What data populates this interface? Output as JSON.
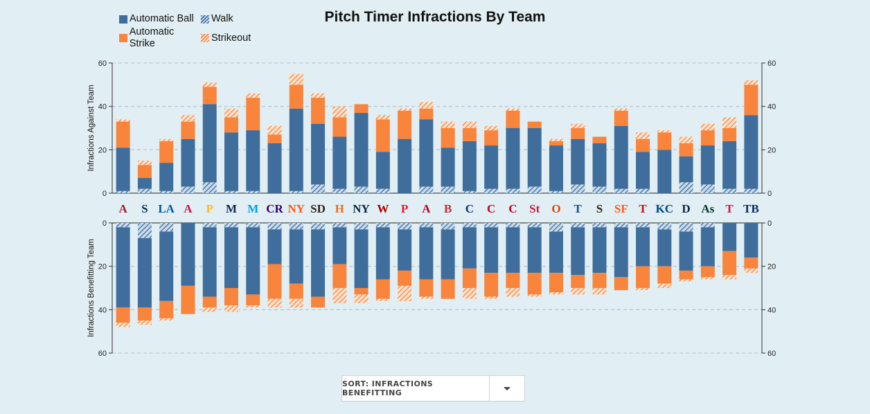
{
  "title": "Pitch Timer Infractions By Team",
  "legend": {
    "automatic_ball": "Automatic Ball",
    "walk": "Walk",
    "automatic_strike": "Automatic Strike",
    "strikeout": "Strikeout"
  },
  "colors": {
    "automatic_ball": "#3f6e9c",
    "automatic_strike": "#f9843c",
    "walk_hatch": "#3f6e9c",
    "strikeout_hatch": "#f9843c",
    "background": "#e1eef3"
  },
  "sort": {
    "label": "SORT: INFRACTIONS BENEFITTING",
    "icon": "chevron-down-icon"
  },
  "chart_data": {
    "type": "bar",
    "stacked": true,
    "mirrored": true,
    "title": "Pitch Timer Infractions By Team",
    "upper_panel": {
      "ylabel": "Infractions Against Team",
      "ylim": [
        0,
        60
      ],
      "ticks": [
        0,
        20,
        40,
        60
      ]
    },
    "lower_panel": {
      "ylabel": "Infractions Benefitting Team",
      "ylim": [
        0,
        60
      ],
      "ticks": [
        0,
        20,
        40,
        60
      ],
      "inverted": true
    },
    "grid": true,
    "legend_position": "top-left",
    "series_order": [
      "Walk",
      "Automatic Ball",
      "Automatic Strike",
      "Strikeout"
    ],
    "teams": [
      {
        "logo": "A",
        "color": "#a71930",
        "against": {
          "walk": 1,
          "ball": 20,
          "strike": 12,
          "so": 1
        },
        "benefit": {
          "walk": 2,
          "ball": 37,
          "strike": 7,
          "so": 2
        }
      },
      {
        "logo": "S",
        "color": "#0c2c56",
        "against": {
          "walk": 2,
          "ball": 5,
          "strike": 6,
          "so": 2
        },
        "benefit": {
          "walk": 7,
          "ball": 32,
          "strike": 6,
          "so": 2
        }
      },
      {
        "logo": "LA",
        "color": "#005a9c",
        "against": {
          "walk": 1,
          "ball": 13,
          "strike": 10,
          "so": 1
        },
        "benefit": {
          "walk": 4,
          "ball": 32,
          "strike": 8,
          "so": 1
        }
      },
      {
        "logo": "A",
        "color": "#ce1141",
        "against": {
          "walk": 3,
          "ball": 22,
          "strike": 8,
          "so": 3
        },
        "benefit": {
          "walk": 0,
          "ball": 29,
          "strike": 13,
          "so": 0
        }
      },
      {
        "logo": "P",
        "color": "#fdb827",
        "against": {
          "walk": 5,
          "ball": 36,
          "strike": 8,
          "so": 2
        },
        "benefit": {
          "walk": 2,
          "ball": 32,
          "strike": 5,
          "so": 2
        }
      },
      {
        "logo": "M",
        "color": "#12284b",
        "against": {
          "walk": 1,
          "ball": 27,
          "strike": 7,
          "so": 4
        },
        "benefit": {
          "walk": 2,
          "ball": 28,
          "strike": 8,
          "so": 3
        }
      },
      {
        "logo": "M",
        "color": "#00a3e0",
        "against": {
          "walk": 1,
          "ball": 28,
          "strike": 15,
          "so": 2
        },
        "benefit": {
          "walk": 2,
          "ball": 31,
          "strike": 5,
          "so": 1
        }
      },
      {
        "logo": "CR",
        "color": "#33006f",
        "against": {
          "walk": 0,
          "ball": 23,
          "strike": 4,
          "so": 4
        },
        "benefit": {
          "walk": 3,
          "ball": 16,
          "strike": 16,
          "so": 4
        }
      },
      {
        "logo": "NY",
        "color": "#ff5910",
        "against": {
          "walk": 1,
          "ball": 38,
          "strike": 11,
          "so": 5
        },
        "benefit": {
          "walk": 3,
          "ball": 25,
          "strike": 7,
          "so": 4
        }
      },
      {
        "logo": "SD",
        "color": "#2f241d",
        "against": {
          "walk": 4,
          "ball": 28,
          "strike": 12,
          "so": 2
        },
        "benefit": {
          "walk": 3,
          "ball": 31,
          "strike": 5,
          "so": 0
        }
      },
      {
        "logo": "H",
        "color": "#eb6e1f",
        "against": {
          "walk": 2,
          "ball": 24,
          "strike": 9,
          "so": 5
        },
        "benefit": {
          "walk": 2,
          "ball": 17,
          "strike": 11,
          "so": 7
        }
      },
      {
        "logo": "NY",
        "color": "#0c2340",
        "against": {
          "walk": 3,
          "ball": 34,
          "strike": 4,
          "so": 0
        },
        "benefit": {
          "walk": 3,
          "ball": 27,
          "strike": 3,
          "so": 4
        }
      },
      {
        "logo": "W",
        "color": "#ab0003",
        "against": {
          "walk": 2,
          "ball": 17,
          "strike": 15,
          "so": 2
        },
        "benefit": {
          "walk": 2,
          "ball": 24,
          "strike": 9,
          "so": 1
        }
      },
      {
        "logo": "P",
        "color": "#e81828",
        "against": {
          "walk": 0,
          "ball": 25,
          "strike": 13,
          "so": 1
        },
        "benefit": {
          "walk": 3,
          "ball": 19,
          "strike": 7,
          "so": 7
        }
      },
      {
        "logo": "A",
        "color": "#ba0021",
        "against": {
          "walk": 3,
          "ball": 31,
          "strike": 5,
          "so": 3
        },
        "benefit": {
          "walk": 2,
          "ball": 24,
          "strike": 8,
          "so": 1
        }
      },
      {
        "logo": "B",
        "color": "#bd3039",
        "against": {
          "walk": 3,
          "ball": 18,
          "strike": 9,
          "so": 3
        },
        "benefit": {
          "walk": 3,
          "ball": 23,
          "strike": 9,
          "so": 0
        }
      },
      {
        "logo": "C",
        "color": "#0e3386",
        "against": {
          "walk": 1,
          "ball": 23,
          "strike": 6,
          "so": 3
        },
        "benefit": {
          "walk": 2,
          "ball": 19,
          "strike": 9,
          "so": 5
        }
      },
      {
        "logo": "C",
        "color": "#c6011f",
        "against": {
          "walk": 2,
          "ball": 20,
          "strike": 7,
          "so": 2
        },
        "benefit": {
          "walk": 2,
          "ball": 21,
          "strike": 11,
          "so": 1
        }
      },
      {
        "logo": "C",
        "color": "#c6011f",
        "against": {
          "walk": 2,
          "ball": 28,
          "strike": 8,
          "so": 1
        },
        "benefit": {
          "walk": 2,
          "ball": 21,
          "strike": 7,
          "so": 4
        }
      },
      {
        "logo": "St",
        "color": "#c41e3a",
        "against": {
          "walk": 3,
          "ball": 27,
          "strike": 3,
          "so": 0
        },
        "benefit": {
          "walk": 2,
          "ball": 21,
          "strike": 10,
          "so": 1
        }
      },
      {
        "logo": "O",
        "color": "#df4601",
        "against": {
          "walk": 1,
          "ball": 21,
          "strike": 2,
          "so": 1
        },
        "benefit": {
          "walk": 4,
          "ball": 19,
          "strike": 9,
          "so": 1
        }
      },
      {
        "logo": "T",
        "color": "#134a8e",
        "against": {
          "walk": 4,
          "ball": 21,
          "strike": 5,
          "so": 2
        },
        "benefit": {
          "walk": 2,
          "ball": 22,
          "strike": 6,
          "so": 3
        }
      },
      {
        "logo": "S",
        "color": "#27251f",
        "against": {
          "walk": 3,
          "ball": 20,
          "strike": 3,
          "so": 0
        },
        "benefit": {
          "walk": 2,
          "ball": 21,
          "strike": 7,
          "so": 3
        }
      },
      {
        "logo": "SF",
        "color": "#fd5a1e",
        "against": {
          "walk": 2,
          "ball": 29,
          "strike": 7,
          "so": 1
        },
        "benefit": {
          "walk": 2,
          "ball": 23,
          "strike": 6,
          "so": 0
        }
      },
      {
        "logo": "T",
        "color": "#c0111f",
        "against": {
          "walk": 2,
          "ball": 17,
          "strike": 6,
          "so": 3
        },
        "benefit": {
          "walk": 2,
          "ball": 18,
          "strike": 10,
          "so": 1
        }
      },
      {
        "logo": "KC",
        "color": "#004687",
        "against": {
          "walk": 0,
          "ball": 20,
          "strike": 8,
          "so": 1
        },
        "benefit": {
          "walk": 3,
          "ball": 17,
          "strike": 8,
          "so": 2
        }
      },
      {
        "logo": "D",
        "color": "#0c2340",
        "against": {
          "walk": 5,
          "ball": 12,
          "strike": 6,
          "so": 3
        },
        "benefit": {
          "walk": 4,
          "ball": 18,
          "strike": 4,
          "so": 1
        }
      },
      {
        "logo": "As",
        "color": "#003831",
        "against": {
          "walk": 4,
          "ball": 18,
          "strike": 7,
          "so": 3
        },
        "benefit": {
          "walk": 2,
          "ball": 18,
          "strike": 5,
          "so": 1
        }
      },
      {
        "logo": "T",
        "color": "#d31145",
        "against": {
          "walk": 2,
          "ball": 22,
          "strike": 6,
          "so": 5
        },
        "benefit": {
          "walk": 0,
          "ball": 13,
          "strike": 11,
          "so": 2
        }
      },
      {
        "logo": "TB",
        "color": "#092c5c",
        "against": {
          "walk": 2,
          "ball": 34,
          "strike": 14,
          "so": 2
        },
        "benefit": {
          "walk": 0,
          "ball": 16,
          "strike": 5,
          "so": 2
        }
      }
    ]
  }
}
